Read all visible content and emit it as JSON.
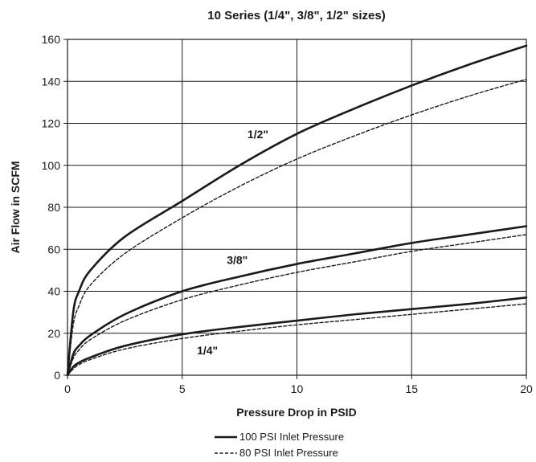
{
  "chart_data": {
    "type": "line",
    "title": "10 Series (1/4\", 3/8\", 1/2\" sizes)",
    "xlabel": "Pressure Drop in PSID",
    "ylabel": "Air Flow in SCFM",
    "xlim": [
      0,
      20
    ],
    "ylim": [
      0,
      160
    ],
    "x_ticks": [
      0,
      5,
      10,
      15,
      20
    ],
    "y_ticks": [
      0,
      20,
      40,
      60,
      80,
      100,
      120,
      140,
      160
    ],
    "grid": true,
    "legend_placement": "bottom",
    "legend": [
      {
        "label": "100 PSI Inlet Pressure",
        "style": "solid"
      },
      {
        "label": "80 PSI Inlet Pressure",
        "style": "dashed"
      }
    ],
    "x": [
      0,
      0.25,
      0.5,
      1,
      2.5,
      5,
      7.5,
      10,
      12.5,
      15,
      17.5,
      20
    ],
    "series": [
      {
        "size": "1/2\"",
        "inlet": "100 PSI Inlet Pressure",
        "style": "solid",
        "color": "#1a1a1a",
        "values": [
          0,
          30,
          40,
          50,
          66,
          83,
          100,
          115,
          127,
          138,
          148,
          157
        ]
      },
      {
        "size": "1/2\"",
        "inlet": "80 PSI Inlet Pressure",
        "style": "dashed",
        "color": "#1a1a1a",
        "values": [
          0,
          24,
          33,
          43,
          58,
          75,
          90,
          103,
          114,
          124,
          133,
          141
        ]
      },
      {
        "size": "3/8\"",
        "inlet": "100 PSI Inlet Pressure",
        "style": "solid",
        "color": "#1a1a1a",
        "values": [
          0,
          10,
          14,
          19,
          29,
          40,
          47,
          53,
          58,
          63,
          67,
          71
        ]
      },
      {
        "size": "3/8\"",
        "inlet": "80 PSI Inlet Pressure",
        "style": "dashed",
        "color": "#1a1a1a",
        "values": [
          0,
          8,
          12,
          17,
          26,
          36,
          43,
          49,
          54,
          59,
          63,
          67
        ]
      },
      {
        "size": "1/4\"",
        "inlet": "100 PSI Inlet Pressure",
        "style": "solid",
        "color": "#1a1a1a",
        "values": [
          0,
          4,
          6,
          8.5,
          14,
          19.5,
          23,
          26,
          29,
          31.5,
          34,
          37
        ]
      },
      {
        "size": "1/4\"",
        "inlet": "80 PSI Inlet Pressure",
        "style": "dashed",
        "color": "#1a1a1a",
        "values": [
          0,
          3,
          5,
          7.5,
          12.5,
          17.5,
          21,
          24,
          26.5,
          29,
          31.5,
          34
        ]
      }
    ],
    "curve_labels": [
      {
        "text": "1/2\"",
        "x": 8.3,
        "y": 113
      },
      {
        "text": "3/8\"",
        "x": 7.4,
        "y": 53
      },
      {
        "text": "1/4\"",
        "x": 6.1,
        "y": 10
      }
    ]
  }
}
